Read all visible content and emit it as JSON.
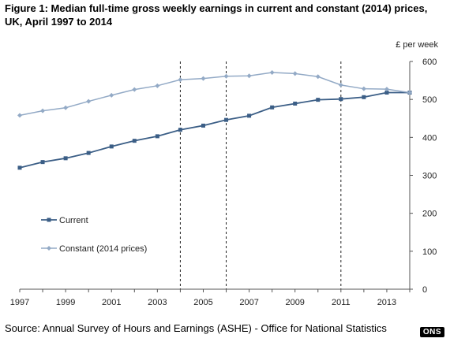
{
  "figure": {
    "title": "Figure 1: Median full-time gross weekly earnings in current and constant (2014) prices, UK, April 1997 to 2014",
    "source": "Source: Annual Survey of Hours and Earnings (ASHE) - Office for National Statistics",
    "badge": "ONS"
  },
  "chart_data": {
    "type": "line",
    "title": "Median full-time gross weekly earnings in current and constant (2014) prices, UK, April 1997 to 2014",
    "ylabel": "£ per week",
    "xlabel": "",
    "xlim": [
      1997,
      2014
    ],
    "ylim": [
      0,
      600
    ],
    "x_ticks": [
      "1997",
      "1999",
      "2001",
      "2003",
      "2005",
      "2007",
      "2009",
      "2011",
      "2013"
    ],
    "y_ticks": [
      "0",
      "100",
      "200",
      "300",
      "400",
      "500",
      "600"
    ],
    "x": [
      1997,
      1998,
      1999,
      2000,
      2001,
      2002,
      2003,
      2004,
      2005,
      2006,
      2007,
      2008,
      2009,
      2010,
      2011,
      2012,
      2013,
      2014
    ],
    "series": [
      {
        "name": "Current",
        "color": "#3b5e86",
        "values": [
          320,
          335,
          345,
          359,
          376,
          391,
          403,
          420,
          431,
          446,
          457,
          479,
          489,
          499,
          501,
          506,
          518,
          518
        ]
      },
      {
        "name": "Constant (2014 prices)",
        "color": "#93aac6",
        "values": [
          458,
          470,
          478,
          495,
          511,
          526,
          536,
          552,
          555,
          561,
          562,
          571,
          568,
          560,
          538,
          528,
          527,
          518
        ]
      }
    ],
    "vertical_dashed_lines_x": [
      2004,
      2006,
      2011
    ],
    "legend_position": "lower-left",
    "grid": false
  }
}
